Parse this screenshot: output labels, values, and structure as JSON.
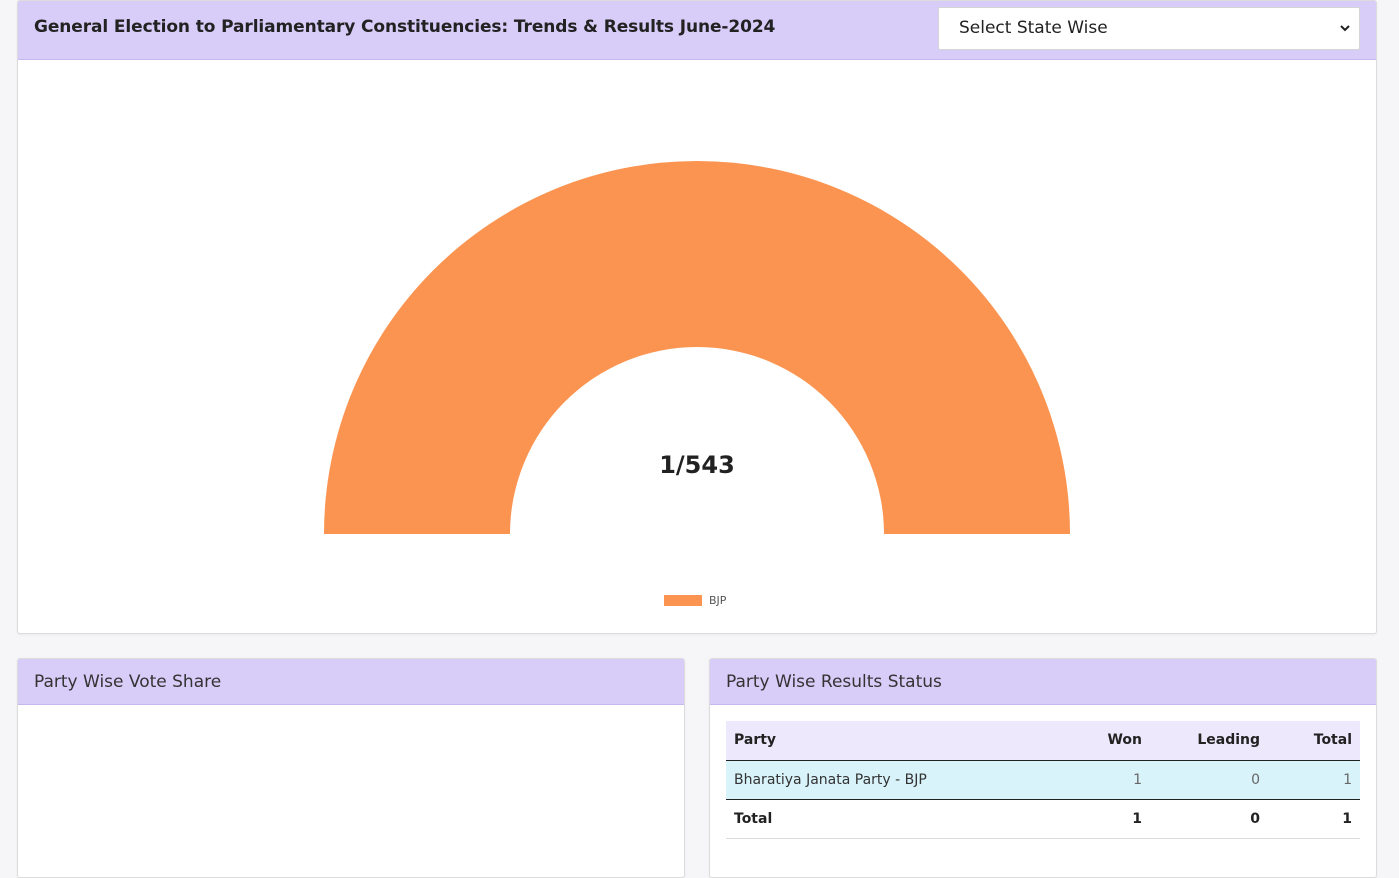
{
  "header": {
    "title": "General Election to Parliamentary Constituencies: Trends & Results June-2024",
    "state_select": {
      "selected": "Select State Wise"
    }
  },
  "gauge": {
    "center_label": "1/543",
    "colors": {
      "bjp": "#fb9450"
    }
  },
  "chart_data": {
    "type": "pie",
    "style": "semi-donut",
    "categories": [
      "BJP"
    ],
    "values": [
      1
    ],
    "title": "",
    "center_text": "1/543",
    "legend": {
      "position": "bottom",
      "entries": [
        "BJP"
      ]
    }
  },
  "vote_share": {
    "title": "Party Wise Vote Share"
  },
  "results_status": {
    "title": "Party Wise Results Status",
    "columns": [
      "Party",
      "Won",
      "Leading",
      "Total"
    ],
    "rows": [
      {
        "party": "Bharatiya Janata Party - BJP",
        "won": "1",
        "leading": "0",
        "total": "1"
      }
    ],
    "total_row": {
      "label": "Total",
      "won": "1",
      "leading": "0",
      "total": "1"
    }
  }
}
